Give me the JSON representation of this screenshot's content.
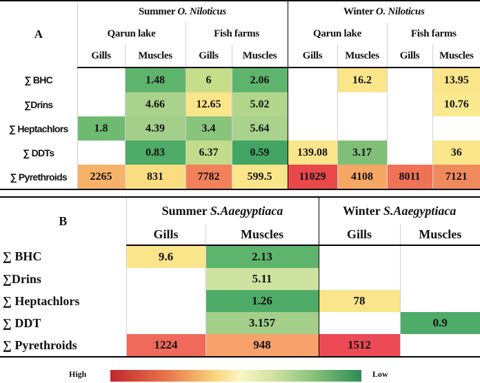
{
  "colors": {
    "high": "#c0272d",
    "low": "#2e8b57"
  },
  "table_a": {
    "panel_label": "A",
    "group_summer": "Summer ",
    "group_summer_species": "O. Niloticus",
    "group_winter": "Winter ",
    "group_winter_species": "O. Niloticus",
    "site_qarun": "Qarun lake",
    "site_farms": "Fish farms",
    "col_gills": "Gills",
    "col_muscles": "Muscles",
    "rows": [
      {
        "label": "∑ BHC",
        "values": [
          "",
          "1.48",
          "6",
          "2.06",
          "",
          "16.2",
          "",
          "13.95"
        ],
        "colors": [
          "",
          "#5fb46d",
          "#c6dd8a",
          "#5fb46d",
          "",
          "#fbe58a",
          "",
          "#fbe58a"
        ]
      },
      {
        "label": "∑Drins",
        "values": [
          "",
          "4.66",
          "12.65",
          "5.02",
          "",
          "",
          "",
          "10.76"
        ],
        "colors": [
          "",
          "#a9d28c",
          "#fbe58a",
          "#b2d58c",
          "",
          "",
          "",
          "#fbe98f"
        ]
      },
      {
        "label": "∑ Heptachlors",
        "values": [
          "1.8",
          "4.39",
          "3.4",
          "5.64",
          "",
          "",
          "",
          ""
        ],
        "colors": [
          "#6dba70",
          "#a3cf8a",
          "#88c47c",
          "#a9d28c",
          "",
          "",
          "",
          ""
        ]
      },
      {
        "label": "∑ DDTs",
        "values": [
          "",
          "0.83",
          "6.37",
          "0.59",
          "139.08",
          "3.17",
          "",
          "36"
        ],
        "colors": [
          "",
          "#4fab68",
          "#c2dc8c",
          "#43a564",
          "#fbe58a",
          "#7fbf78",
          "",
          "#fbe58a"
        ]
      },
      {
        "label": "∑ Pyrethroids",
        "values": [
          "2265",
          "831",
          "7782",
          "599.5",
          "11029",
          "4108",
          "8011",
          "7121"
        ],
        "colors": [
          "#f7b26a",
          "#f9dd80",
          "#f2805a",
          "#fbe58a",
          "#e8484a",
          "#f6a766",
          "#ef7256",
          "#f08a5c"
        ]
      }
    ]
  },
  "table_b": {
    "panel_label": "B",
    "group_summer": "Summer ",
    "group_summer_species": "S.Aaegyptiaca",
    "group_winter": "Winter ",
    "group_winter_species": "S.Aaegyptiaca",
    "col_gills": "Gills",
    "col_muscles": "Muscles",
    "rows": [
      {
        "label": "∑ BHC",
        "values": [
          "9.6",
          "2.13",
          "",
          ""
        ],
        "colors": [
          "#fbe58a",
          "#5fb46d",
          "",
          ""
        ]
      },
      {
        "label": "∑Drins",
        "values": [
          "",
          "5.11",
          "",
          ""
        ],
        "colors": [
          "",
          "#cfe3a1",
          "",
          ""
        ]
      },
      {
        "label": "∑ Heptachlors",
        "values": [
          "",
          "1.26",
          "78",
          ""
        ],
        "colors": [
          "",
          "#4fab68",
          "#fbe58a",
          ""
        ]
      },
      {
        "label": "∑ DDT",
        "values": [
          "",
          "3.157",
          "",
          "0.9"
        ],
        "colors": [
          "",
          "#a3cf8a",
          "",
          "#4fab68"
        ]
      },
      {
        "label": "∑ Pyrethroids",
        "values": [
          "1224",
          "948",
          "1512",
          ""
        ],
        "colors": [
          "#ef6a5a",
          "#f7a26a",
          "#ec4a55",
          ""
        ]
      }
    ]
  },
  "legend": {
    "high": "High",
    "low": "Low"
  }
}
